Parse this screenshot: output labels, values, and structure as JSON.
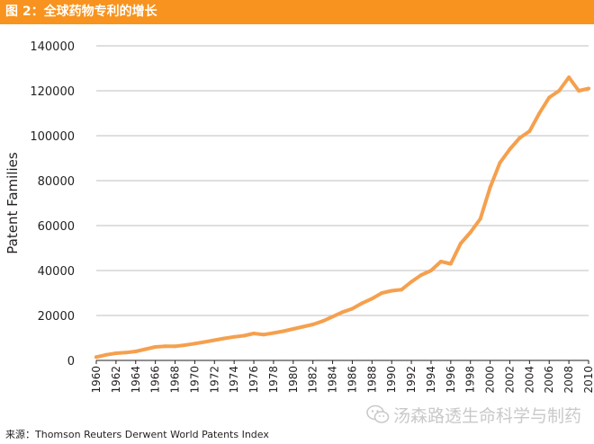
{
  "header": {
    "title": "图 2：全球药物专利的增长"
  },
  "source": {
    "text": "来源：Thomson Reuters Derwent World Patents Index"
  },
  "watermark": {
    "text": "汤森路透生命科学与制药",
    "icon": "wechat-icon"
  },
  "colors": {
    "accent": "#f7931e",
    "line": "#f5a04e",
    "grid": "#bfbfbf",
    "axis": "#231f20"
  },
  "chart_data": {
    "type": "line",
    "title": "",
    "xlabel": "",
    "ylabel": "Patent Families",
    "ylim": [
      0,
      140000
    ],
    "xlim": [
      1960,
      2010
    ],
    "yticks": [
      "0",
      "20000",
      "40000",
      "60000",
      "80000",
      "100000",
      "120000",
      "140000"
    ],
    "xticks": [
      "1960",
      "1962",
      "1964",
      "1966",
      "1968",
      "1970",
      "1972",
      "1974",
      "1976",
      "1978",
      "1980",
      "1982",
      "1984",
      "1986",
      "1988",
      "1990",
      "1992",
      "1994",
      "1996",
      "1998",
      "2000",
      "2002",
      "2004",
      "2006",
      "2008",
      "2010"
    ],
    "grid": "horizontal",
    "series": [
      {
        "name": "",
        "x": [
          1960,
          1961,
          1962,
          1963,
          1964,
          1965,
          1966,
          1967,
          1968,
          1969,
          1970,
          1971,
          1972,
          1973,
          1974,
          1975,
          1976,
          1977,
          1978,
          1979,
          1980,
          1981,
          1982,
          1983,
          1984,
          1985,
          1986,
          1987,
          1988,
          1989,
          1990,
          1991,
          1992,
          1993,
          1994,
          1995,
          1996,
          1997,
          1998,
          1999,
          2000,
          2001,
          2002,
          2003,
          2004,
          2005,
          2006,
          2007,
          2008,
          2009,
          2010
        ],
        "values": [
          1500,
          2500,
          3200,
          3500,
          4000,
          5000,
          6000,
          6300,
          6300,
          6800,
          7500,
          8200,
          9000,
          9800,
          10500,
          11000,
          12000,
          11500,
          12200,
          13000,
          14000,
          15000,
          16000,
          17500,
          19500,
          21500,
          23000,
          25500,
          27500,
          30000,
          31000,
          31500,
          35000,
          38000,
          40000,
          44000,
          43000,
          52000,
          57000,
          63000,
          77000,
          88000,
          94000,
          99000,
          102000,
          110000,
          117000,
          120000,
          126000,
          120000,
          121000
        ]
      }
    ]
  }
}
